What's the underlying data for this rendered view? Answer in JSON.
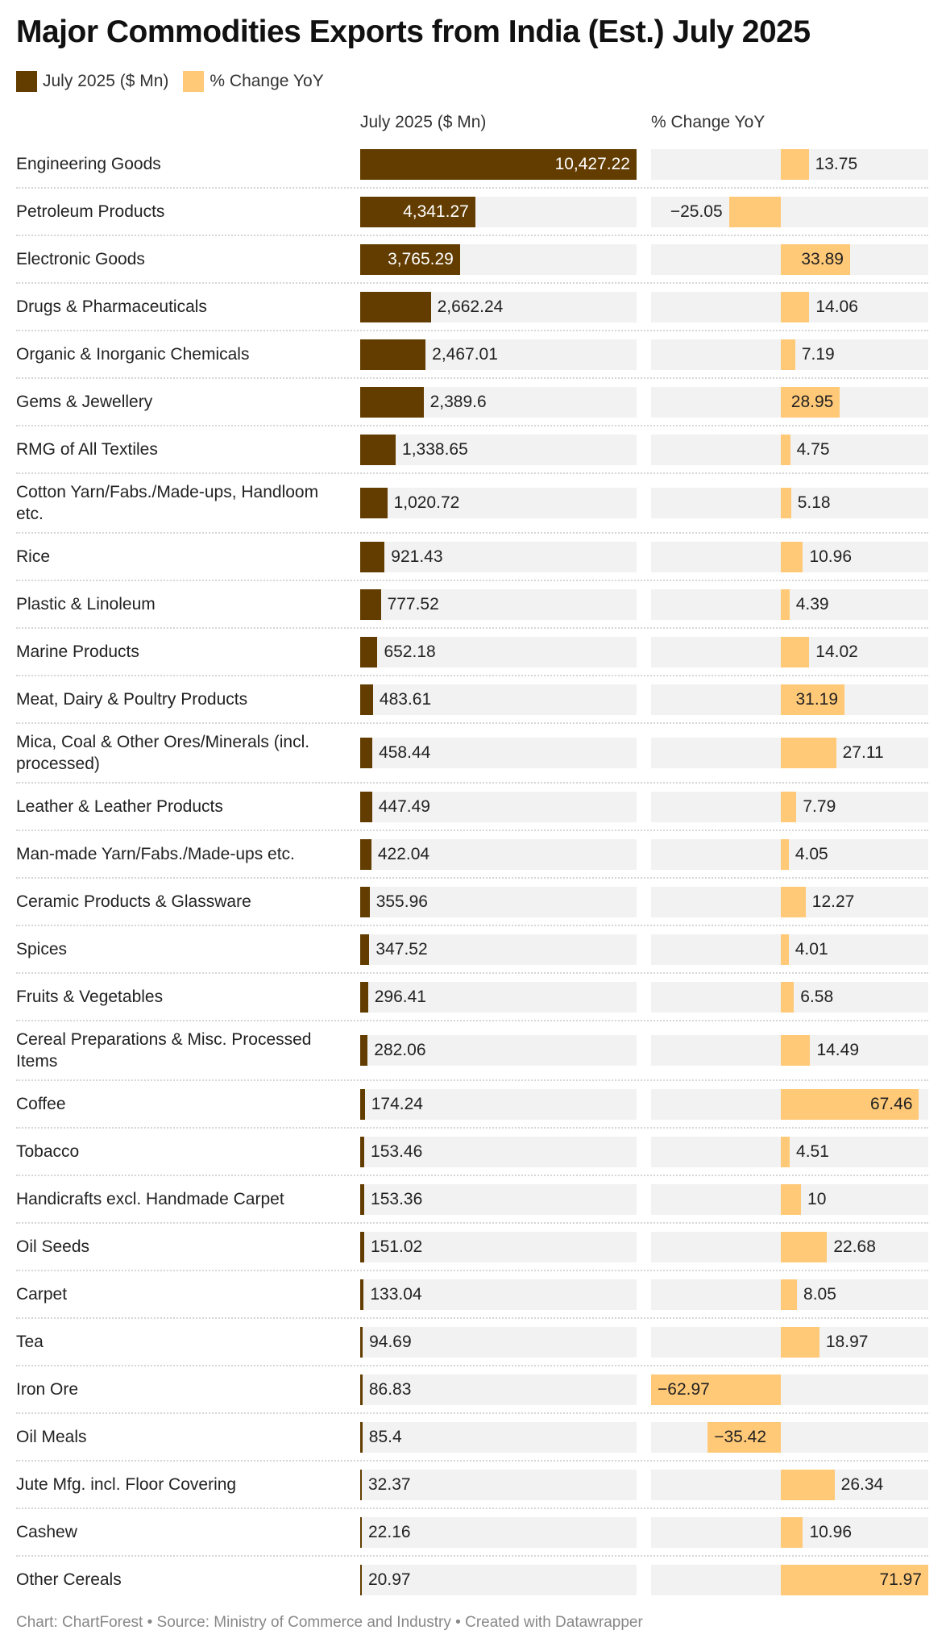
{
  "title": "Major Commodities Exports from India (Est.) July 2025",
  "footer": "Chart: ChartForest • Source: Ministry of Commerce and Industry • Created with Datawrapper",
  "colors": {
    "value": "#633d00",
    "change": "#ffc978",
    "track": "#f2f2f2"
  },
  "chart_data": {
    "type": "bar",
    "title": "Major Commodities Exports from India (Est.) July 2025",
    "legend": {
      "placement": "top-left",
      "entries": [
        "July 2025 ($ Mn)",
        "% Change YoY"
      ]
    },
    "columns": [
      "July 2025 ($ Mn)",
      "% Change YoY"
    ],
    "categories": [
      "Engineering Goods",
      "Petroleum Products",
      "Electronic Goods",
      "Drugs & Pharmaceuticals",
      "Organic & Inorganic Chemicals",
      "Gems & Jewellery",
      "RMG of All Textiles",
      "Cotton Yarn/Fabs./Made-ups, Handloom etc.",
      "Rice",
      "Plastic & Linoleum",
      "Marine Products",
      "Meat, Dairy & Poultry Products",
      "Mica, Coal & Other Ores/Minerals (incl. processed)",
      "Leather & Leather Products",
      "Man-made Yarn/Fabs./Made-ups etc.",
      "Ceramic Products & Glassware",
      "Spices",
      "Fruits & Vegetables",
      "Cereal Preparations & Misc. Processed Items",
      "Coffee",
      "Tobacco",
      "Handicrafts excl. Handmade Carpet",
      "Oil Seeds",
      "Carpet",
      "Tea",
      "Iron Ore",
      "Oil Meals",
      "Jute Mfg. incl. Floor Covering",
      "Cashew",
      "Other Cereals"
    ],
    "series": [
      {
        "name": "July 2025 ($ Mn)",
        "values": [
          10427.22,
          4341.27,
          3765.29,
          2662.24,
          2467.01,
          2389.6,
          1338.65,
          1020.72,
          921.43,
          777.52,
          652.18,
          483.61,
          458.44,
          447.49,
          422.04,
          355.96,
          347.52,
          296.41,
          282.06,
          174.24,
          153.46,
          153.36,
          151.02,
          133.04,
          94.69,
          86.83,
          85.4,
          32.37,
          22.16,
          20.97
        ],
        "labels": [
          "10,427.22",
          "4,341.27",
          "3,765.29",
          "2,662.24",
          "2,467.01",
          "2,389.6",
          "1,338.65",
          "1,020.72",
          "921.43",
          "777.52",
          "652.18",
          "483.61",
          "458.44",
          "447.49",
          "422.04",
          "355.96",
          "347.52",
          "296.41",
          "282.06",
          "174.24",
          "153.46",
          "153.36",
          "151.02",
          "133.04",
          "94.69",
          "86.83",
          "85.4",
          "32.37",
          "22.16",
          "20.97"
        ]
      },
      {
        "name": "% Change YoY",
        "values": [
          13.75,
          -25.05,
          33.89,
          14.06,
          7.19,
          28.95,
          4.75,
          5.18,
          10.96,
          4.39,
          14.02,
          31.19,
          27.11,
          7.79,
          4.05,
          12.27,
          4.01,
          6.58,
          14.49,
          67.46,
          4.51,
          10,
          22.68,
          8.05,
          18.97,
          -62.97,
          -35.42,
          26.34,
          10.96,
          71.97
        ],
        "labels": [
          "13.75",
          "−25.05",
          "33.89",
          "14.06",
          "7.19",
          "28.95",
          "4.75",
          "5.18",
          "10.96",
          "4.39",
          "14.02",
          "31.19",
          "27.11",
          "7.79",
          "4.05",
          "12.27",
          "4.01",
          "6.58",
          "14.49",
          "67.46",
          "4.51",
          "10",
          "22.68",
          "8.05",
          "18.97",
          "−62.97",
          "−35.42",
          "26.34",
          "10.96",
          "71.97"
        ]
      }
    ],
    "xlim_value": [
      0,
      10427.22
    ],
    "xlim_change": [
      -62.97,
      71.97
    ],
    "grid": false
  }
}
